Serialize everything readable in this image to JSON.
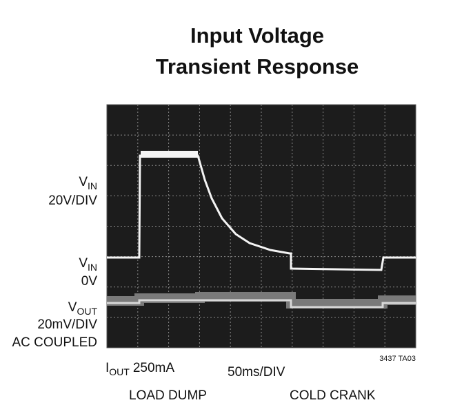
{
  "title": [
    "Input Voltage",
    "Transient Response"
  ],
  "labels": {
    "vin_gain": {
      "symbol": "V",
      "subscript": "IN",
      "text": "20V/DIV"
    },
    "vin_zero": {
      "symbol": "V",
      "subscript": "IN",
      "text": "0V"
    },
    "vout": {
      "symbol": "V",
      "subscript": "OUT",
      "lines": [
        "20mV/DIV",
        "AC COUPLED"
      ]
    },
    "iout": {
      "symbol": "I",
      "subscript": "OUT",
      "text": "250mA"
    },
    "timebase": "50ms/DIV",
    "figure_id": "3437 TA03",
    "events": [
      "LOAD DUMP",
      "COLD CRANK"
    ]
  }
}
